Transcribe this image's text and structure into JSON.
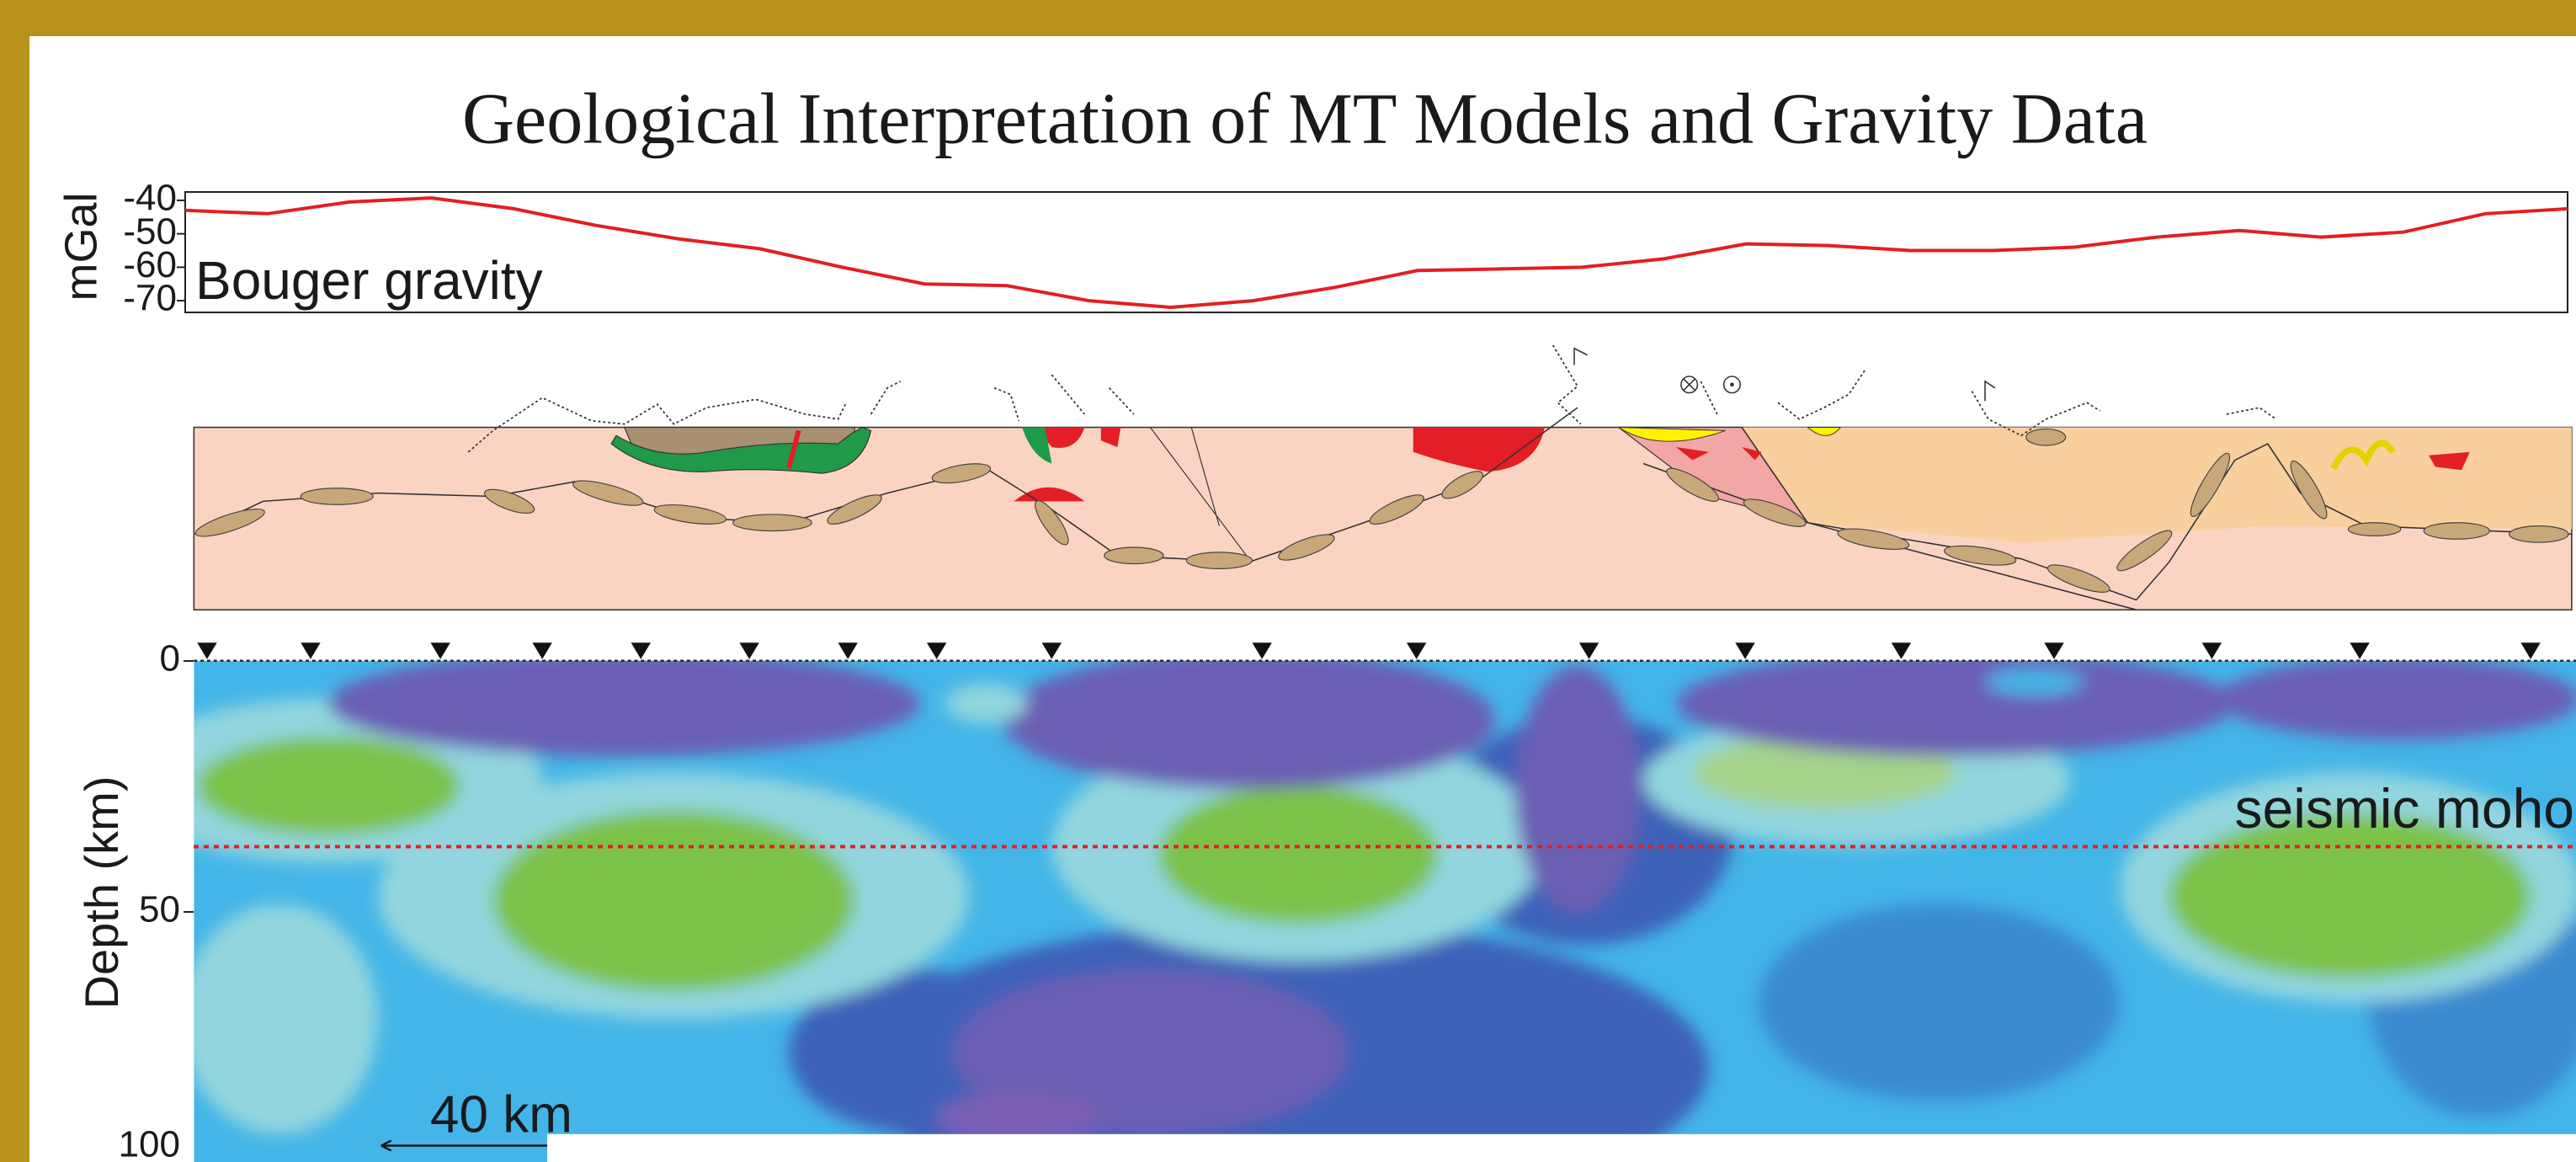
{
  "chart_data": [
    {
      "type": "line",
      "title": "Geological Interpretation of MT Models and Gravity Data",
      "y_label": "mGal",
      "annotation": "Bouger gravity",
      "color": "#e31e24",
      "values": [
        -43,
        -44,
        -40.5,
        -39.3,
        -42.5,
        -47.5,
        -51.5,
        -54.5,
        -60,
        -65,
        -65.5,
        -70,
        -72,
        -70,
        -66,
        -61,
        -60.5,
        -60,
        -57.5,
        -53,
        -53.5,
        -55,
        -55,
        -54,
        -51,
        -49,
        -51,
        -49.5,
        -44,
        -42.5
      ],
      "ylim": [
        -73.5,
        -37.5
      ],
      "yticks": [
        -40,
        -50,
        -60,
        -70
      ]
    },
    {
      "type": "section",
      "y_label": "Depth (km)",
      "ylim": [
        0,
        100
      ],
      "yticks": [
        0,
        50,
        100
      ],
      "moho_label": "seismic moho",
      "moho_depth": 37,
      "moho_color": "#e31e24",
      "scale_label": "40 km"
    }
  ]
}
